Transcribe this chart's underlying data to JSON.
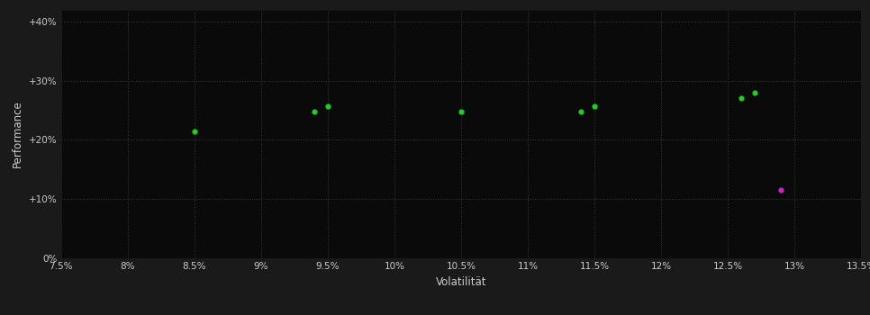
{
  "background_color": "#1a1a1a",
  "plot_bg_color": "#0a0a0a",
  "grid_color": "#3a3a3a",
  "text_color": "#cccccc",
  "xlabel": "Volatilität",
  "ylabel": "Performance",
  "xlim": [
    0.075,
    0.135
  ],
  "ylim": [
    0.0,
    0.42
  ],
  "xticks": [
    0.075,
    0.08,
    0.085,
    0.09,
    0.095,
    0.1,
    0.105,
    0.11,
    0.115,
    0.12,
    0.125,
    0.13,
    0.135
  ],
  "yticks": [
    0.0,
    0.1,
    0.2,
    0.3,
    0.4
  ],
  "ytick_labels": [
    "0%",
    "+10%",
    "+20%",
    "+30%",
    "+40%"
  ],
  "xtick_labels": [
    "7.5%",
    "8%",
    "8.5%",
    "9%",
    "9.5%",
    "10%",
    "10.5%",
    "11%",
    "11.5%",
    "12%",
    "12.5%",
    "13%",
    "13.5%"
  ],
  "green_points": [
    [
      0.085,
      0.214
    ],
    [
      0.094,
      0.248
    ],
    [
      0.095,
      0.256
    ],
    [
      0.105,
      0.247
    ],
    [
      0.114,
      0.248
    ],
    [
      0.115,
      0.256
    ],
    [
      0.126,
      0.271
    ],
    [
      0.127,
      0.279
    ]
  ],
  "magenta_points": [
    [
      0.129,
      0.115
    ]
  ],
  "green_color": "#22cc22",
  "magenta_color": "#cc22cc",
  "point_size": 20,
  "figsize": [
    9.66,
    3.5
  ],
  "dpi": 100
}
